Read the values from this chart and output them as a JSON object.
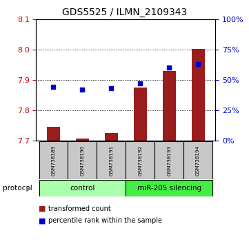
{
  "title": "GDS5525 / ILMN_2109343",
  "samples": [
    "GSM738189",
    "GSM738190",
    "GSM738191",
    "GSM738192",
    "GSM738193",
    "GSM738194"
  ],
  "transformed_count": [
    7.745,
    7.705,
    7.725,
    7.875,
    7.93,
    8.002
  ],
  "percentile_rank": [
    44,
    42,
    43,
    47,
    60,
    63
  ],
  "ylim_left": [
    7.7,
    8.1
  ],
  "ylim_right": [
    0,
    100
  ],
  "yticks_left": [
    7.7,
    7.8,
    7.9,
    8.0,
    8.1
  ],
  "yticks_right": [
    0,
    25,
    50,
    75,
    100
  ],
  "bar_color": "#9B1C1C",
  "dot_color": "#0000CC",
  "bar_bottom": 7.7,
  "groups": [
    {
      "label": "control",
      "indices": [
        0,
        1,
        2
      ],
      "color": "#AAFFAA"
    },
    {
      "label": "miR-205 silencing",
      "indices": [
        3,
        4,
        5
      ],
      "color": "#44EE44"
    }
  ],
  "protocol_label": "protocol",
  "legend_bar_label": "transformed count",
  "legend_dot_label": "percentile rank within the sample",
  "tick_label_color_left": "#CC0000",
  "tick_label_color_right": "#0000CC"
}
